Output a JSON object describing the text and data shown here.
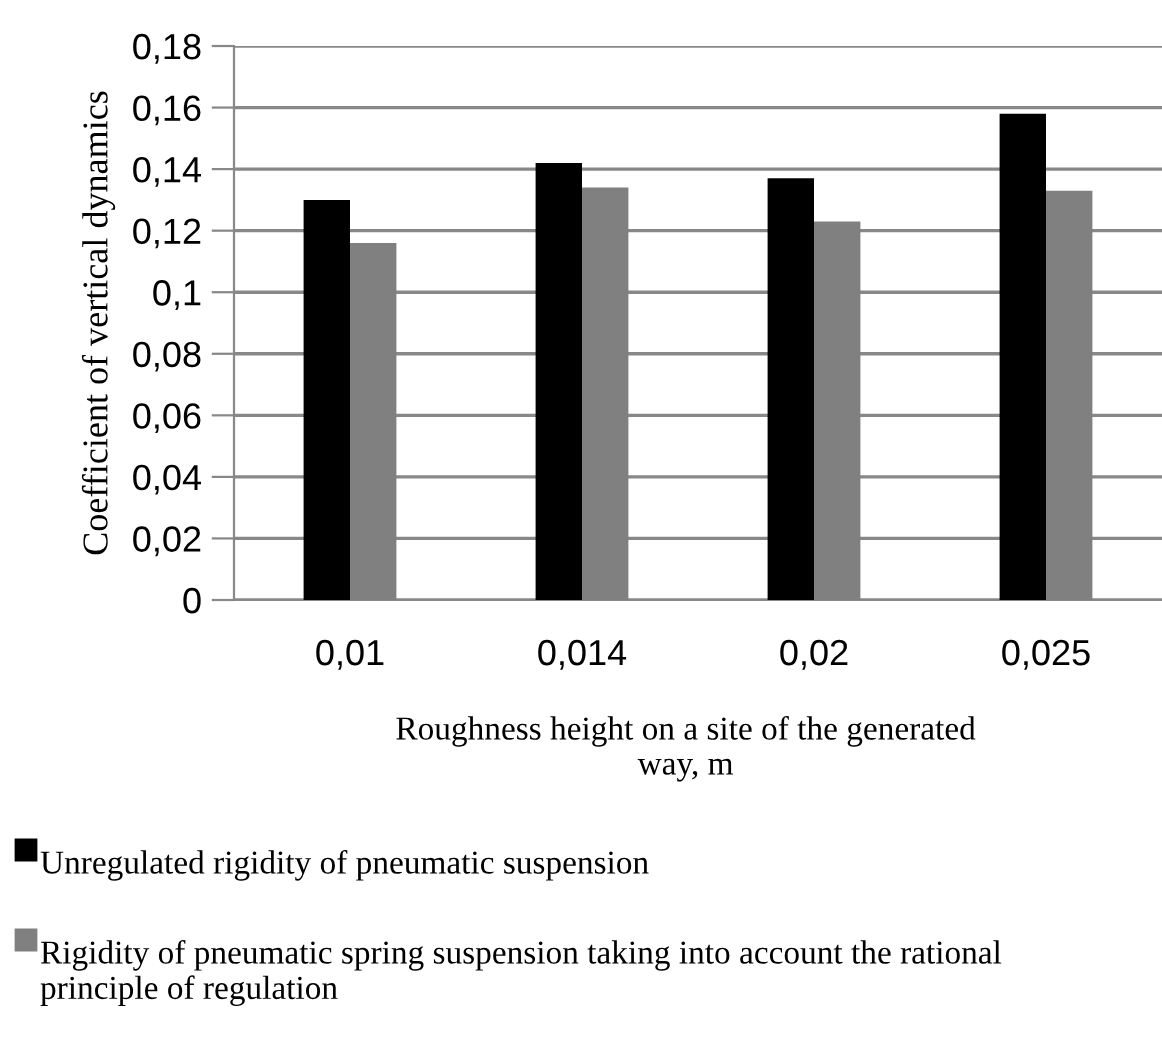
{
  "chart_data": {
    "type": "bar",
    "xlabel": "Roughness height on a site of the generated way, m",
    "ylabel": "Coefficient of vertical dynamics",
    "categories": [
      "0,01",
      "0,014",
      "0,02",
      "0,025"
    ],
    "series": [
      {
        "name": "Unregulated rigidity of pneumatic suspension",
        "color": "#000000",
        "values": [
          0.13,
          0.142,
          0.137,
          0.158
        ]
      },
      {
        "name": "Rigidity of pneumatic spring suspension taking into account the rational principle of regulation",
        "color": "#808080",
        "values": [
          0.116,
          0.134,
          0.123,
          0.133
        ]
      }
    ],
    "ylim": [
      0,
      0.18
    ],
    "yticks": [
      {
        "value": 0,
        "label": "0"
      },
      {
        "value": 0.02,
        "label": "0,02"
      },
      {
        "value": 0.04,
        "label": "0,04"
      },
      {
        "value": 0.06,
        "label": "0,06"
      },
      {
        "value": 0.08,
        "label": "0,08"
      },
      {
        "value": 0.1,
        "label": "0,1"
      },
      {
        "value": 0.12,
        "label": "0,12"
      },
      {
        "value": 0.14,
        "label": "0,14"
      },
      {
        "value": 0.16,
        "label": "0,16"
      },
      {
        "value": 0.18,
        "label": "0,18"
      }
    ],
    "grid": "y",
    "legend": "bottom"
  }
}
